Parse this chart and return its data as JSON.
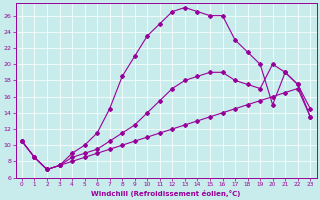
{
  "xlabel": "Windchill (Refroidissement éolien,°C)",
  "bg_color": "#c8ecec",
  "line_color": "#990099",
  "xlim": [
    -0.5,
    23.5
  ],
  "ylim": [
    6,
    27.5
  ],
  "xticks": [
    0,
    1,
    2,
    3,
    4,
    5,
    6,
    7,
    8,
    9,
    10,
    11,
    12,
    13,
    14,
    15,
    16,
    17,
    18,
    19,
    20,
    21,
    22,
    23
  ],
  "yticks": [
    6,
    8,
    10,
    12,
    14,
    16,
    18,
    20,
    22,
    24,
    26
  ],
  "series_top_x": [
    0,
    1,
    2,
    3,
    4,
    5,
    6,
    7,
    8,
    9,
    10,
    11,
    12,
    13,
    14,
    15,
    16,
    17,
    18,
    19,
    20,
    21,
    22,
    23
  ],
  "series_top_y": [
    10.5,
    8.5,
    7.0,
    7.5,
    9.0,
    10.0,
    11.5,
    14.5,
    18.5,
    21.0,
    23.5,
    25.0,
    26.5,
    27.0,
    26.5,
    26.0,
    26.0,
    23.0,
    21.5,
    20.0,
    15.0,
    19.0,
    17.5,
    14.5
  ],
  "series_mid_x": [
    0,
    1,
    2,
    3,
    4,
    5,
    6,
    7,
    8,
    9,
    10,
    11,
    12,
    13,
    14,
    15,
    16,
    17,
    18,
    19,
    20,
    21,
    22,
    23
  ],
  "series_mid_y": [
    10.5,
    8.5,
    7.0,
    7.5,
    8.5,
    9.0,
    9.5,
    10.5,
    11.5,
    12.5,
    14.0,
    15.5,
    17.0,
    18.0,
    18.5,
    19.0,
    19.0,
    18.0,
    17.5,
    17.0,
    20.0,
    19.0,
    17.5,
    13.5
  ],
  "series_bot_x": [
    0,
    1,
    2,
    3,
    4,
    5,
    6,
    7,
    8,
    9,
    10,
    11,
    12,
    13,
    14,
    15,
    16,
    17,
    18,
    19,
    20,
    21,
    22,
    23
  ],
  "series_bot_y": [
    10.5,
    8.5,
    7.0,
    7.5,
    8.0,
    8.5,
    9.0,
    9.5,
    10.0,
    10.5,
    11.0,
    11.5,
    12.0,
    12.5,
    13.0,
    13.5,
    14.0,
    14.5,
    15.0,
    15.5,
    16.0,
    16.5,
    17.0,
    13.5
  ]
}
